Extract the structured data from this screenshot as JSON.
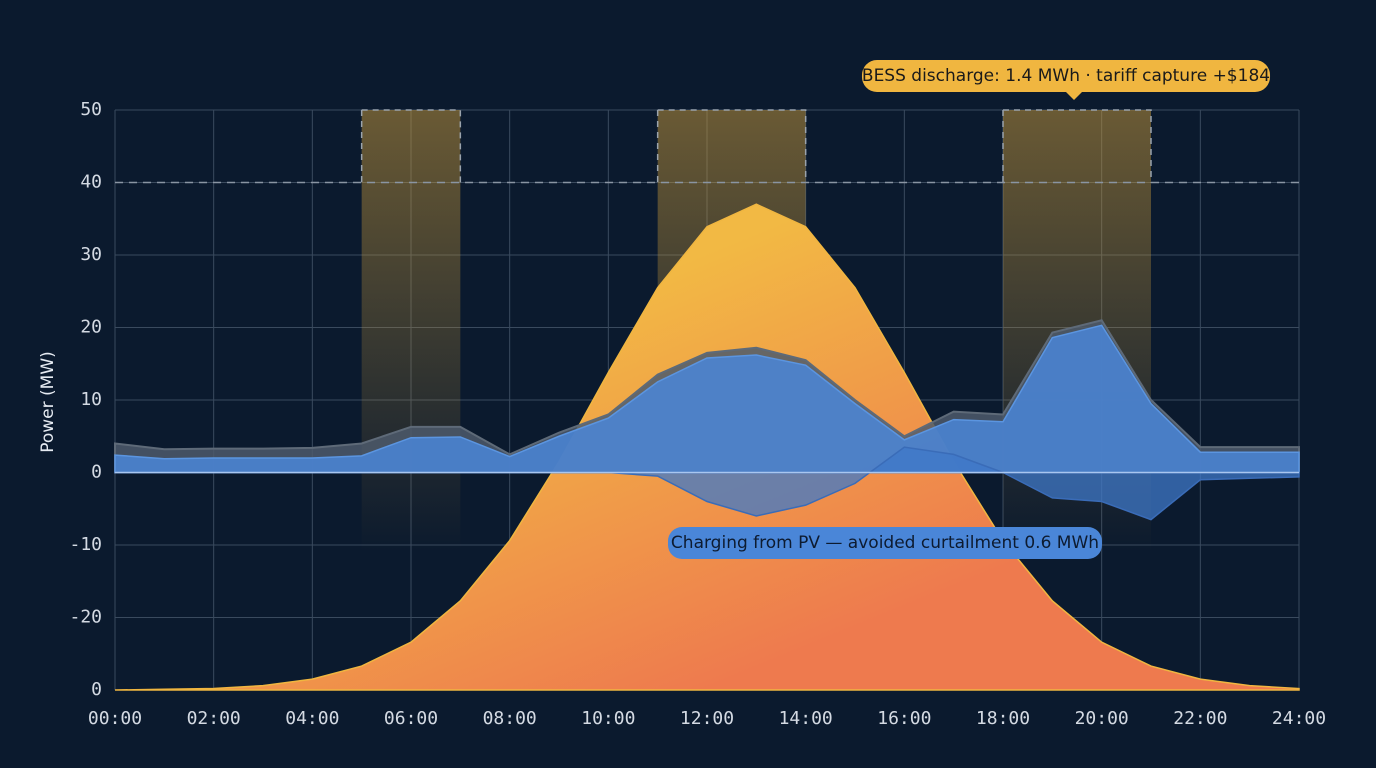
{
  "chart_data": {
    "type": "area",
    "y_label": "Power (MW)",
    "x": [
      0,
      1,
      2,
      3,
      4,
      5,
      6,
      7,
      8,
      9,
      10,
      11,
      12,
      13,
      14,
      15,
      16,
      17,
      18,
      19,
      20,
      21,
      22,
      23,
      24
    ],
    "xlim": [
      0,
      24
    ],
    "xticks": [
      {
        "value": 0,
        "label": "00:00"
      },
      {
        "value": 2,
        "label": "02:00"
      },
      {
        "value": 4,
        "label": "04:00"
      },
      {
        "value": 6,
        "label": "06:00"
      },
      {
        "value": 8,
        "label": "08:00"
      },
      {
        "value": 10,
        "label": "10:00"
      },
      {
        "value": 12,
        "label": "12:00"
      },
      {
        "value": 14,
        "label": "14:00"
      },
      {
        "value": 16,
        "label": "16:00"
      },
      {
        "value": 18,
        "label": "18:00"
      },
      {
        "value": 20,
        "label": "20:00"
      },
      {
        "value": 22,
        "label": "22:00"
      },
      {
        "value": 24,
        "label": "24:00"
      }
    ],
    "ylim": [
      -30,
      50
    ],
    "yticks": [
      50,
      40,
      30,
      20,
      10,
      0,
      -10,
      -20,
      {
        "value": -30,
        "label": "0"
      }
    ],
    "grid": true,
    "cap_line": 40,
    "peak_windows": [
      [
        5,
        7
      ],
      [
        11,
        14
      ],
      [
        18,
        21
      ]
    ],
    "series": [
      {
        "color": "#f0b640",
        "values": [
          -30,
          -29.9,
          -29.8,
          -29.4,
          -28.5,
          -26.7,
          -23.4,
          -17.7,
          -9.4,
          1.5,
          13.8,
          25.5,
          33.9,
          37,
          33.9,
          25.5,
          13.8,
          1.5,
          -9.4,
          -17.7,
          -23.4,
          -26.7,
          -28.5,
          -29.4,
          -29.8
        ]
      },
      {
        "color": "#4d5a6b",
        "values": [
          4,
          3.2,
          3.3,
          3.3,
          3.4,
          4,
          6.3,
          6.3,
          2.5,
          5.5,
          8,
          13.5,
          16.5,
          17.2,
          15.5,
          10,
          5,
          8.4,
          8,
          19.3,
          21,
          10,
          3.5,
          3.5,
          3.5
        ]
      },
      {
        "color": "#4a86d8",
        "values": [
          2.4,
          1.9,
          2,
          2,
          2,
          2.3,
          4.8,
          4.9,
          2.2,
          5,
          7.5,
          12.5,
          15.8,
          16.2,
          14.8,
          9.5,
          4.5,
          7.3,
          7,
          18.6,
          20.3,
          9.5,
          2.8,
          2.8,
          2.8
        ]
      },
      {
        "color": "#3f78c8",
        "values": [
          0,
          0,
          0,
          0,
          0,
          0,
          0,
          0,
          0,
          0,
          0,
          -0.5,
          -4,
          -6,
          -4.5,
          -1.5,
          3.5,
          2.5,
          0,
          -3.5,
          -4,
          -6.5,
          -1,
          -0.8,
          -0.6
        ]
      }
    ],
    "annotations": [
      "BESS discharge: 1.4 MWh · tariff capture +$184",
      "Charging from PV — avoided curtailment 0.6 MWh"
    ]
  }
}
